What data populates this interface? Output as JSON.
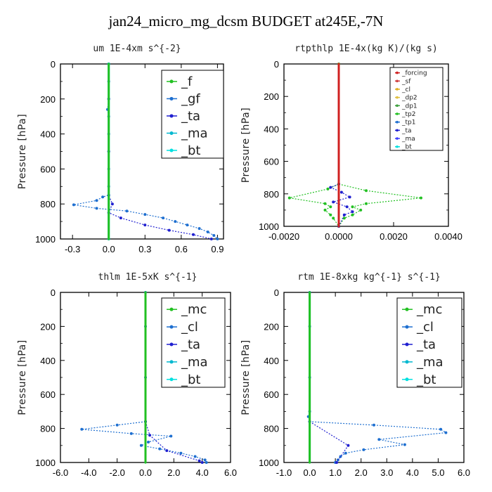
{
  "title": "jan24_micro_mg_dcsm  BUDGET at245E,-7N",
  "chart_data": [
    {
      "type": "line",
      "title": "um   1E-4xm s^{-2}",
      "ylabel": "Pressure [hPa]",
      "xlim": [
        -0.4,
        0.95
      ],
      "ylim": [
        1000,
        0
      ],
      "xticks": [
        "-0.3",
        "0.0",
        "0.3",
        "0.6",
        "0.9"
      ],
      "xtick_values": [
        -0.3,
        0.0,
        0.3,
        0.6,
        0.9
      ],
      "yticks": [
        0,
        200,
        400,
        600,
        800,
        1000
      ],
      "legend_size": "big",
      "legend": [
        "_f",
        "_gf",
        "_ta",
        "_ma",
        "_bt"
      ],
      "series": [
        {
          "name": "_gf",
          "color": "#1e6fd0",
          "points": [
            [
              0,
              0
            ],
            [
              0,
              100
            ],
            [
              0,
              200
            ],
            [
              -0.01,
              260
            ],
            [
              0,
              300
            ],
            [
              0,
              400
            ],
            [
              0,
              500
            ],
            [
              0,
              600
            ],
            [
              0,
              700
            ],
            [
              0,
              750
            ],
            [
              -0.05,
              760
            ],
            [
              -0.1,
              780
            ],
            [
              -0.29,
              805
            ],
            [
              -0.1,
              825
            ],
            [
              0.15,
              840
            ],
            [
              0.3,
              860
            ],
            [
              0.45,
              880
            ],
            [
              0.55,
              900
            ],
            [
              0.65,
              920
            ],
            [
              0.75,
              940
            ],
            [
              0.82,
              960
            ],
            [
              0.87,
              980
            ],
            [
              0.9,
              1000
            ]
          ]
        },
        {
          "name": "_ta",
          "color": "#2020d0",
          "points": [
            [
              0,
              0
            ],
            [
              0,
              200
            ],
            [
              0,
              500
            ],
            [
              0,
              750
            ],
            [
              0.03,
              800
            ],
            [
              0,
              850
            ],
            [
              0.1,
              880
            ],
            [
              0.3,
              920
            ],
            [
              0.5,
              950
            ],
            [
              0.7,
              975
            ],
            [
              0.85,
              1000
            ]
          ]
        },
        {
          "name": "_ma",
          "color": "#00b8d0",
          "points": [
            [
              0,
              0
            ],
            [
              0,
              1000
            ]
          ]
        },
        {
          "name": "_bt",
          "color": "#00e0e0",
          "points": [
            [
              0,
              0
            ],
            [
              0,
              1000
            ]
          ]
        },
        {
          "name": "_f",
          "color": "#22c022",
          "points": [
            [
              0,
              0
            ],
            [
              0,
              1000
            ]
          ]
        }
      ]
    },
    {
      "type": "line",
      "title": "rtpthlp   1E-4x(kg K)/(kg s)",
      "ylabel": "Pressure [hPa]",
      "xlim": [
        -0.002,
        0.004
      ],
      "ylim": [
        1000,
        0
      ],
      "xticks": [
        "-0.0020",
        "0.0000",
        "0.0020",
        "0.0040"
      ],
      "xtick_values": [
        -0.002,
        0.0,
        0.002,
        0.004
      ],
      "yticks": [
        0,
        200,
        400,
        600,
        800,
        1000
      ],
      "legend_size": "small",
      "legend": [
        "_forcing",
        "_sf",
        "_cl",
        "_dp2",
        "_dp1",
        "_tp2",
        "_tp1",
        "_ta",
        "_ma",
        "_bt"
      ],
      "series": [
        {
          "name": "_tp2",
          "color": "#22c022",
          "points": [
            [
              0,
              0
            ],
            [
              0,
              740
            ],
            [
              -0.0004,
              770
            ],
            [
              -0.0018,
              825
            ],
            [
              -0.0005,
              860
            ],
            [
              -0.0003,
              880
            ],
            [
              -0.0005,
              900
            ],
            [
              -0.0003,
              930
            ],
            [
              -0.0002,
              950
            ],
            [
              0,
              1000
            ]
          ]
        },
        {
          "name": "_tp2",
          "color": "#22c022",
          "points": [
            [
              0,
              740
            ],
            [
              0.001,
              780
            ],
            [
              0.003,
              825
            ],
            [
              0.001,
              860
            ],
            [
              0.0005,
              880
            ],
            [
              0.0008,
              900
            ],
            [
              0.0005,
              930
            ],
            [
              0.0002,
              950
            ],
            [
              0,
              1000
            ]
          ]
        },
        {
          "name": "_ta",
          "color": "#2020d0",
          "points": [
            [
              0,
              740
            ],
            [
              -0.0003,
              760
            ],
            [
              0.0001,
              790
            ],
            [
              0.0004,
              820
            ],
            [
              -0.0002,
              850
            ],
            [
              0.0003,
              880
            ],
            [
              0.0005,
              910
            ],
            [
              0.0002,
              930
            ],
            [
              0,
              1000
            ]
          ]
        },
        {
          "name": "_forcing",
          "color": "#d02020",
          "points": [
            [
              0,
              0
            ],
            [
              0,
              1000
            ]
          ]
        }
      ]
    },
    {
      "type": "line",
      "title": "thlm   1E-5xK s^{-1}",
      "ylabel": "Pressure [hPa]",
      "xlim": [
        -6.0,
        6.0
      ],
      "ylim": [
        1000,
        0
      ],
      "xticks": [
        "-6.0",
        "-4.0",
        "-2.0",
        "0.0",
        "2.0",
        "4.0",
        "6.0"
      ],
      "xtick_values": [
        -6.0,
        -4.0,
        -2.0,
        0.0,
        2.0,
        4.0,
        6.0
      ],
      "yticks": [
        0,
        200,
        400,
        600,
        800,
        1000
      ],
      "legend_size": "big",
      "legend": [
        "_mc",
        "_cl",
        "_ta",
        "_ma",
        "_bt"
      ],
      "series": [
        {
          "name": "_cl",
          "color": "#1e6fd0",
          "points": [
            [
              0,
              0
            ],
            [
              0,
              200
            ],
            [
              0,
              500
            ],
            [
              0,
              760
            ],
            [
              -2,
              780
            ],
            [
              -4.5,
              805
            ],
            [
              -1,
              830
            ],
            [
              1.8,
              845
            ],
            [
              0.2,
              880
            ],
            [
              -0.3,
              900
            ],
            [
              1,
              920
            ],
            [
              2.5,
              945
            ],
            [
              3.5,
              965
            ],
            [
              4.2,
              985
            ],
            [
              4.3,
              1000
            ]
          ]
        },
        {
          "name": "_ta",
          "color": "#2020d0",
          "points": [
            [
              0,
              760
            ],
            [
              0.3,
              840
            ],
            [
              1.5,
              930
            ],
            [
              3.8,
              990
            ],
            [
              4,
              1000
            ]
          ]
        },
        {
          "name": "_bt",
          "color": "#00e0e0",
          "points": [
            [
              0,
              0
            ],
            [
              0,
              1000
            ]
          ]
        },
        {
          "name": "_mc",
          "color": "#22c022",
          "points": [
            [
              0,
              0
            ],
            [
              0,
              1000
            ]
          ]
        }
      ]
    },
    {
      "type": "line",
      "title": "rtm   1E-8xkg kg^{-1} s^{-1}",
      "ylabel": "Pressure [hPa]",
      "xlim": [
        -1.0,
        6.0
      ],
      "ylim": [
        1000,
        0
      ],
      "xticks": [
        "-1.0",
        "0.0",
        "1.0",
        "2.0",
        "3.0",
        "4.0",
        "5.0",
        "6.0"
      ],
      "xtick_values": [
        -1.0,
        0.0,
        1.0,
        2.0,
        3.0,
        4.0,
        5.0,
        6.0
      ],
      "yticks": [
        0,
        200,
        400,
        600,
        800,
        1000
      ],
      "legend_size": "big",
      "legend": [
        "_mc",
        "_cl",
        "_ta",
        "_ma",
        "_bt"
      ],
      "series": [
        {
          "name": "_cl",
          "color": "#1e6fd0",
          "points": [
            [
              0,
              0
            ],
            [
              0,
              200
            ],
            [
              0,
              500
            ],
            [
              0,
              700
            ],
            [
              -0.05,
              730
            ],
            [
              0,
              760
            ],
            [
              2.5,
              780
            ],
            [
              5.1,
              805
            ],
            [
              5.3,
              825
            ],
            [
              2.7,
              865
            ],
            [
              3.7,
              895
            ],
            [
              2.1,
              925
            ],
            [
              1.4,
              945
            ],
            [
              1.2,
              965
            ],
            [
              1.1,
              985
            ],
            [
              1,
              1000
            ]
          ]
        },
        {
          "name": "_ta",
          "color": "#2020d0",
          "points": [
            [
              0,
              760
            ],
            [
              1.5,
              900
            ],
            [
              1.05,
              1000
            ]
          ]
        },
        {
          "name": "_bt",
          "color": "#00e0e0",
          "points": [
            [
              0,
              0
            ],
            [
              0,
              1000
            ]
          ]
        },
        {
          "name": "_mc",
          "color": "#22c022",
          "points": [
            [
              0,
              0
            ],
            [
              0,
              1000
            ]
          ]
        }
      ]
    }
  ]
}
